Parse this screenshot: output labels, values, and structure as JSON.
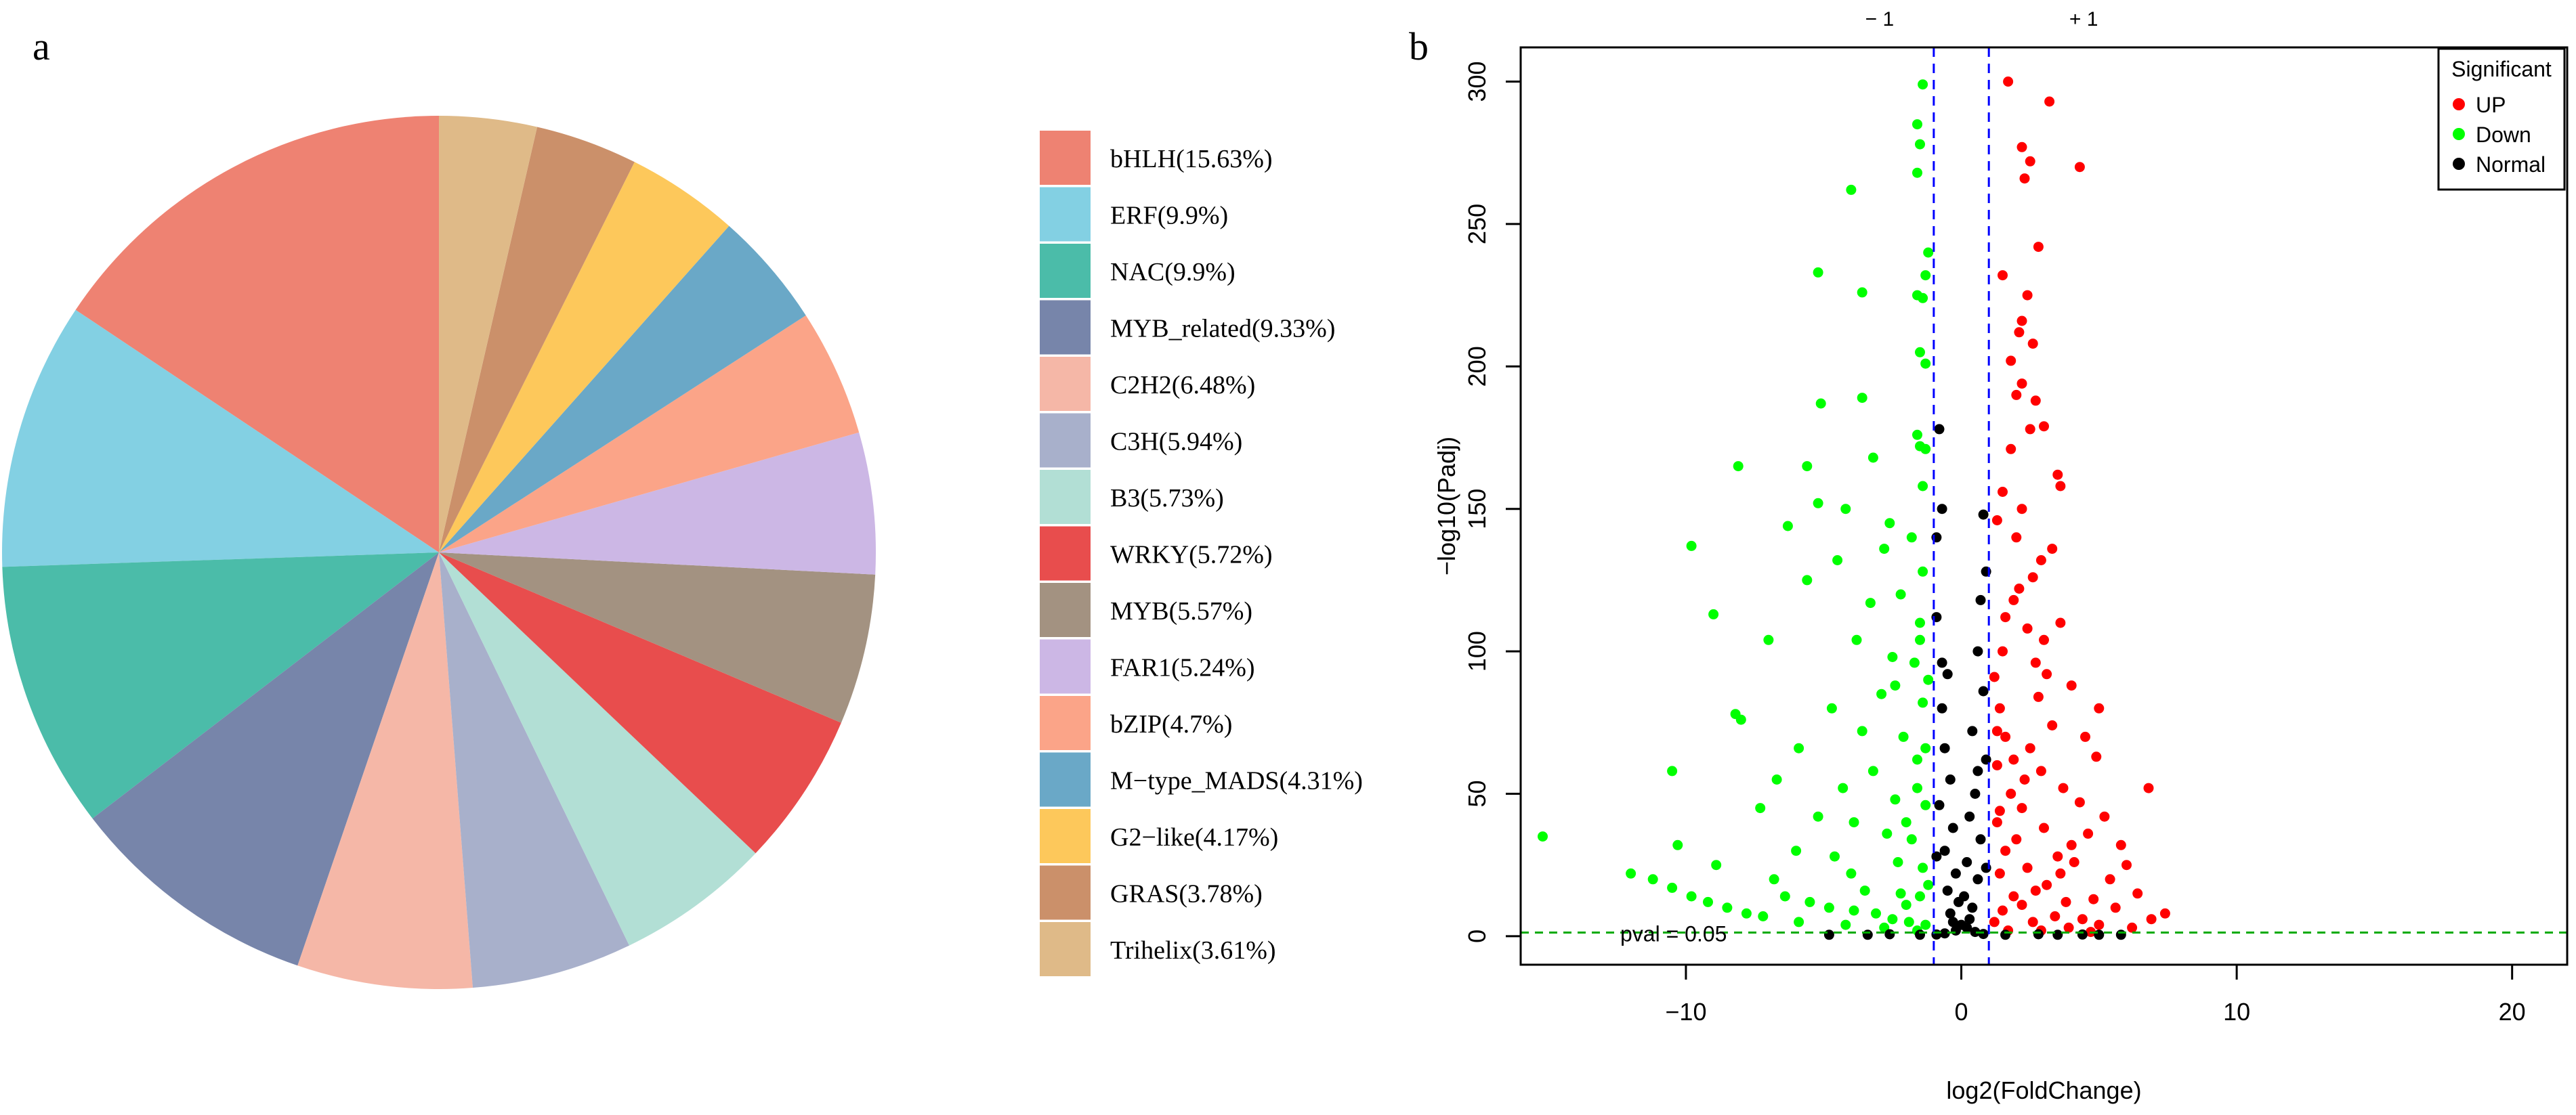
{
  "chart_data": [
    {
      "type": "pie",
      "panel_label": "a",
      "slices": [
        {
          "label": "bHLH(15.63%)",
          "value": 15.63,
          "color": "#EE8272"
        },
        {
          "label": "ERF(9.9%)",
          "value": 9.9,
          "color": "#83D0E3"
        },
        {
          "label": "NAC(9.9%)",
          "value": 9.9,
          "color": "#4BBCA9"
        },
        {
          "label": "MYB_related(9.33%)",
          "value": 9.33,
          "color": "#7785AA"
        },
        {
          "label": "C2H2(6.48%)",
          "value": 6.48,
          "color": "#F5B7A7"
        },
        {
          "label": "C3H(5.94%)",
          "value": 5.94,
          "color": "#A8B0CB"
        },
        {
          "label": "B3(5.73%)",
          "value": 5.73,
          "color": "#B2DFD5"
        },
        {
          "label": "WRKY(5.72%)",
          "value": 5.72,
          "color": "#E84D4D"
        },
        {
          "label": "MYB(5.57%)",
          "value": 5.57,
          "color": "#A39281"
        },
        {
          "label": "FAR1(5.24%)",
          "value": 5.24,
          "color": "#CCB7E5"
        },
        {
          "label": "bZIP(4.7%)",
          "value": 4.7,
          "color": "#FBA488"
        },
        {
          "label": "M−type_MADS(4.31%)",
          "value": 4.31,
          "color": "#6AA8C7"
        },
        {
          "label": "G2−like(4.17%)",
          "value": 4.17,
          "color": "#FDC85B"
        },
        {
          "label": "GRAS(3.78%)",
          "value": 3.78,
          "color": "#CB906A"
        },
        {
          "label": "Trihelix(3.61%)",
          "value": 3.61,
          "color": "#DFBA88"
        }
      ]
    },
    {
      "type": "scatter",
      "subtype": "volcano",
      "panel_label": "b",
      "xlabel": "log2(FoldChange)",
      "ylabel": "−log10(Padj)",
      "xlim": [
        -16,
        22
      ],
      "ylim": [
        -10,
        312
      ],
      "xticks": [
        -10,
        0,
        10,
        20
      ],
      "xtick_labels": [
        "−10",
        "0",
        "10",
        "20"
      ],
      "yticks": [
        0,
        50,
        100,
        150,
        200,
        250,
        300
      ],
      "yticks_labels": [
        "0",
        "50",
        "100",
        "150",
        "200",
        "250",
        "300"
      ],
      "legend": {
        "title": "Significant",
        "position": "top-right",
        "entries": [
          {
            "label": "UP",
            "color": "#FF0000"
          },
          {
            "label": "Down",
            "color": "#00FF00"
          },
          {
            "label": "Normal",
            "color": "#000000"
          }
        ]
      },
      "thresholds": {
        "fold_change": [
          -1,
          1
        ],
        "fold_change_labels": [
          "− 1",
          "+ 1"
        ],
        "pvalue_line": 1.3,
        "pvalue_label": "pval = 0.05",
        "vline_color": "#0000FF",
        "hline_color": "#00AA00"
      },
      "series": [
        {
          "name": "UP",
          "color": "#FF0000",
          "points": [
            [
              1.7,
              300
            ],
            [
              3.2,
              293
            ],
            [
              2.2,
              277
            ],
            [
              2.5,
              272
            ],
            [
              4.3,
              270
            ],
            [
              2.3,
              266
            ],
            [
              2.8,
              242
            ],
            [
              1.5,
              232
            ],
            [
              2.4,
              225
            ],
            [
              2.1,
              212
            ],
            [
              2.6,
              208
            ],
            [
              2.2,
              194
            ],
            [
              2.0,
              190
            ],
            [
              3.0,
              179
            ],
            [
              2.5,
              178
            ],
            [
              1.8,
              171
            ],
            [
              3.5,
              162
            ],
            [
              3.6,
              158
            ],
            [
              2.2,
              150
            ],
            [
              1.3,
              146
            ],
            [
              2.0,
              140
            ],
            [
              3.3,
              136
            ],
            [
              2.6,
              126
            ],
            [
              1.9,
              118
            ],
            [
              3.6,
              110
            ],
            [
              2.4,
              108
            ],
            [
              1.5,
              100
            ],
            [
              3.1,
              92
            ],
            [
              4.0,
              88
            ],
            [
              2.8,
              84
            ],
            [
              1.4,
              80
            ],
            [
              5.0,
              80
            ],
            [
              3.3,
              74
            ],
            [
              4.5,
              70
            ],
            [
              1.6,
              70
            ],
            [
              2.5,
              66
            ],
            [
              4.9,
              63
            ],
            [
              1.3,
              60
            ],
            [
              2.9,
              58
            ],
            [
              6.8,
              52
            ],
            [
              3.7,
              52
            ],
            [
              1.8,
              50
            ],
            [
              4.3,
              47
            ],
            [
              2.2,
              45
            ],
            [
              5.2,
              42
            ],
            [
              1.3,
              40
            ],
            [
              3.0,
              38
            ],
            [
              4.6,
              36
            ],
            [
              2.0,
              34
            ],
            [
              5.8,
              32
            ],
            [
              1.6,
              30
            ],
            [
              3.5,
              28
            ],
            [
              4.1,
              26
            ],
            [
              6.0,
              25
            ],
            [
              2.4,
              24
            ],
            [
              1.4,
              22
            ],
            [
              5.4,
              20
            ],
            [
              3.1,
              18
            ],
            [
              2.7,
              16
            ],
            [
              6.4,
              15
            ],
            [
              1.9,
              14
            ],
            [
              4.8,
              13
            ],
            [
              3.8,
              12
            ],
            [
              2.2,
              11
            ],
            [
              5.6,
              10
            ],
            [
              1.5,
              9
            ],
            [
              7.4,
              8
            ],
            [
              6.9,
              6
            ],
            [
              3.4,
              7
            ],
            [
              4.4,
              6
            ],
            [
              2.6,
              5
            ],
            [
              1.2,
              5
            ],
            [
              5.0,
              4
            ],
            [
              3.9,
              3
            ],
            [
              6.2,
              3
            ],
            [
              1.7,
              2
            ],
            [
              2.9,
              2
            ],
            [
              4.7,
              1.5
            ],
            [
              3.6,
              22
            ],
            [
              4.0,
              32
            ],
            [
              2.3,
              55
            ],
            [
              1.9,
              62
            ],
            [
              2.7,
              96
            ],
            [
              3.0,
              104
            ],
            [
              1.6,
              112
            ],
            [
              2.1,
              122
            ],
            [
              2.9,
              132
            ],
            [
              1.5,
              156
            ],
            [
              2.7,
              188
            ],
            [
              1.8,
              202
            ],
            [
              2.2,
              216
            ],
            [
              1.2,
              91
            ],
            [
              1.3,
              72
            ],
            [
              1.4,
              44
            ]
          ]
        },
        {
          "name": "Down",
          "color": "#00FF00",
          "points": [
            [
              -1.4,
              299
            ],
            [
              -1.6,
              285
            ],
            [
              -1.5,
              278
            ],
            [
              -1.6,
              268
            ],
            [
              -4.0,
              262
            ],
            [
              -5.2,
              233
            ],
            [
              -3.6,
              226
            ],
            [
              -1.6,
              225
            ],
            [
              -1.4,
              224
            ],
            [
              -1.3,
              232
            ],
            [
              -1.5,
              205
            ],
            [
              -1.3,
              201
            ],
            [
              -5.1,
              187
            ],
            [
              -3.6,
              189
            ],
            [
              -1.5,
              172
            ],
            [
              -1.3,
              171
            ],
            [
              -1.6,
              176
            ],
            [
              -5.6,
              165
            ],
            [
              -3.2,
              168
            ],
            [
              -8.1,
              165
            ],
            [
              -5.2,
              152
            ],
            [
              -6.3,
              144
            ],
            [
              -2.6,
              145
            ],
            [
              -4.2,
              150
            ],
            [
              -1.8,
              140
            ],
            [
              -9.8,
              137
            ],
            [
              -4.5,
              132
            ],
            [
              -2.8,
              136
            ],
            [
              -1.4,
              128
            ],
            [
              -5.6,
              125
            ],
            [
              -9.0,
              113
            ],
            [
              -3.3,
              117
            ],
            [
              -2.2,
              120
            ],
            [
              -1.5,
              110
            ],
            [
              -7.0,
              104
            ],
            [
              -3.8,
              104
            ],
            [
              -2.5,
              98
            ],
            [
              -1.7,
              96
            ],
            [
              -8.2,
              78
            ],
            [
              -8.0,
              76
            ],
            [
              -2.9,
              85
            ],
            [
              -1.4,
              82
            ],
            [
              -4.7,
              80
            ],
            [
              -3.6,
              72
            ],
            [
              -2.1,
              70
            ],
            [
              -5.9,
              66
            ],
            [
              -1.6,
              62
            ],
            [
              -10.5,
              58
            ],
            [
              -6.7,
              55
            ],
            [
              -3.2,
              58
            ],
            [
              -4.3,
              52
            ],
            [
              -2.4,
              48
            ],
            [
              -1.3,
              46
            ],
            [
              -7.3,
              45
            ],
            [
              -5.2,
              42
            ],
            [
              -3.9,
              40
            ],
            [
              -2.7,
              36
            ],
            [
              -15.2,
              35
            ],
            [
              -1.8,
              34
            ],
            [
              -10.3,
              32
            ],
            [
              -6.0,
              30
            ],
            [
              -4.6,
              28
            ],
            [
              -2.3,
              26
            ],
            [
              -8.9,
              25
            ],
            [
              -1.4,
              24
            ],
            [
              -12.0,
              22
            ],
            [
              -11.2,
              20
            ],
            [
              -10.5,
              17
            ],
            [
              -9.8,
              14
            ],
            [
              -9.2,
              12
            ],
            [
              -8.5,
              10
            ],
            [
              -7.8,
              8
            ],
            [
              -7.2,
              7
            ],
            [
              -6.4,
              14
            ],
            [
              -5.5,
              12
            ],
            [
              -4.8,
              10
            ],
            [
              -3.9,
              9
            ],
            [
              -3.1,
              8
            ],
            [
              -2.5,
              6
            ],
            [
              -1.9,
              5
            ],
            [
              -1.3,
              4
            ],
            [
              -5.9,
              5
            ],
            [
              -4.2,
              4
            ],
            [
              -2.8,
              3
            ],
            [
              -1.6,
              2
            ],
            [
              -3.5,
              16
            ],
            [
              -2.2,
              15
            ],
            [
              -1.5,
              14
            ],
            [
              -6.8,
              20
            ],
            [
              -4.0,
              22
            ],
            [
              -1.2,
              18
            ],
            [
              -2.0,
              40
            ],
            [
              -1.6,
              52
            ],
            [
              -1.3,
              66
            ],
            [
              -2.4,
              88
            ],
            [
              -1.5,
              104
            ],
            [
              -1.2,
              90
            ],
            [
              -1.4,
              158
            ],
            [
              -1.2,
              240
            ],
            [
              -2.0,
              11
            ]
          ]
        },
        {
          "name": "Normal",
          "color": "#000000",
          "points": [
            [
              -0.8,
              178
            ],
            [
              0.8,
              148
            ],
            [
              -0.7,
              150
            ],
            [
              0.7,
              118
            ],
            [
              -0.9,
              112
            ],
            [
              0.6,
              100
            ],
            [
              -0.5,
              92
            ],
            [
              0.8,
              86
            ],
            [
              -0.7,
              80
            ],
            [
              0.4,
              72
            ],
            [
              -0.6,
              66
            ],
            [
              0.9,
              62
            ],
            [
              -0.4,
              55
            ],
            [
              0.5,
              50
            ],
            [
              -0.8,
              46
            ],
            [
              0.3,
              42
            ],
            [
              -0.3,
              38
            ],
            [
              0.7,
              34
            ],
            [
              -0.6,
              30
            ],
            [
              0.2,
              26
            ],
            [
              -0.2,
              22
            ],
            [
              0.6,
              20
            ],
            [
              -0.5,
              16
            ],
            [
              0.1,
              14
            ],
            [
              -0.1,
              12
            ],
            [
              0.4,
              10
            ],
            [
              -0.4,
              8
            ],
            [
              0.3,
              6
            ],
            [
              -0.3,
              5
            ],
            [
              0.0,
              4
            ],
            [
              0.2,
              3
            ],
            [
              -0.2,
              2
            ],
            [
              0.5,
              1.5
            ],
            [
              -0.6,
              1
            ],
            [
              0.8,
              0.8
            ],
            [
              -0.9,
              0.6
            ],
            [
              -4.8,
              0.5
            ],
            [
              5.0,
              0.5
            ],
            [
              5.8,
              0.5
            ],
            [
              4.4,
              0.6
            ],
            [
              -2.6,
              0.7
            ],
            [
              2.8,
              0.7
            ],
            [
              -1.5,
              0.5
            ],
            [
              1.6,
              0.5
            ],
            [
              -3.4,
              0.5
            ],
            [
              3.5,
              0.5
            ],
            [
              0.9,
              24
            ],
            [
              -0.9,
              28
            ],
            [
              0.6,
              58
            ],
            [
              -0.7,
              96
            ],
            [
              0.9,
              128
            ],
            [
              -0.9,
              140
            ]
          ]
        }
      ]
    }
  ]
}
